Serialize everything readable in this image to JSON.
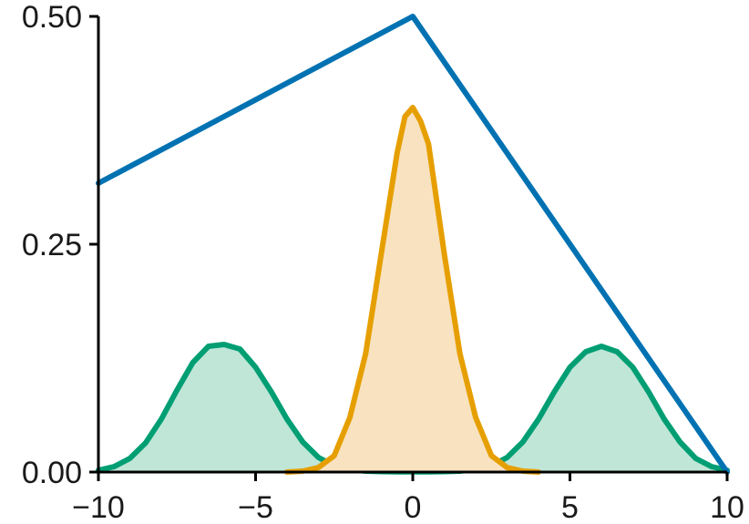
{
  "chart_data": {
    "type": "area",
    "xlim": [
      -10,
      10
    ],
    "ylim": [
      0,
      0.5
    ],
    "x_ticks": [
      "−10",
      "−5",
      "0",
      "5",
      "10"
    ],
    "x_tick_values": [
      -10,
      -5,
      0,
      5,
      10
    ],
    "y_ticks": [
      "0.00",
      "0.25",
      "0.50"
    ],
    "y_tick_values": [
      0,
      0.25,
      0.5
    ],
    "grid": false,
    "legend": "none",
    "series": [
      {
        "kind": "line",
        "color": "#0072b2",
        "fill": false,
        "x": [
          -10,
          0,
          10
        ],
        "y": [
          0.317,
          0.5,
          0.0
        ]
      },
      {
        "kind": "density",
        "color": "#e69f00",
        "fill_color": "#f8e2c0",
        "fill": true,
        "x": [
          -4,
          -3.5,
          -3,
          -2.5,
          -2,
          -1.5,
          -1,
          -0.5,
          -0.25,
          0,
          0.25,
          0.5,
          0.75,
          1,
          1.5,
          2,
          2.5,
          3,
          3.5,
          4
        ],
        "y": [
          0.0,
          0.001,
          0.005,
          0.018,
          0.06,
          0.13,
          0.24,
          0.35,
          0.39,
          0.4,
          0.385,
          0.36,
          0.3,
          0.24,
          0.13,
          0.06,
          0.018,
          0.005,
          0.001,
          0.0
        ]
      },
      {
        "kind": "density",
        "color": "#009e73",
        "fill_color": "#bfe6d7",
        "fill": true,
        "x": [
          -10,
          -9.5,
          -9,
          -8.5,
          -8,
          -7.5,
          -7,
          -6.5,
          -6,
          -5.5,
          -5,
          -4.5,
          -4,
          -3.5,
          -3,
          -2.5,
          -2,
          -1.5,
          -1,
          -0.5,
          0,
          0.5,
          1,
          1.5,
          2,
          2.5,
          3,
          3.5,
          4,
          4.5,
          5,
          5.5,
          6,
          6.5,
          7,
          7.5,
          8,
          8.5,
          9,
          9.5,
          10
        ],
        "y": [
          0.002,
          0.006,
          0.015,
          0.032,
          0.058,
          0.09,
          0.12,
          0.138,
          0.14,
          0.135,
          0.115,
          0.088,
          0.058,
          0.033,
          0.016,
          0.007,
          0.003,
          0.001,
          0.0005,
          0.0003,
          0.0003,
          0.0003,
          0.0005,
          0.001,
          0.003,
          0.007,
          0.016,
          0.033,
          0.058,
          0.088,
          0.115,
          0.132,
          0.138,
          0.132,
          0.115,
          0.088,
          0.058,
          0.033,
          0.015,
          0.006,
          0.002
        ]
      }
    ]
  }
}
